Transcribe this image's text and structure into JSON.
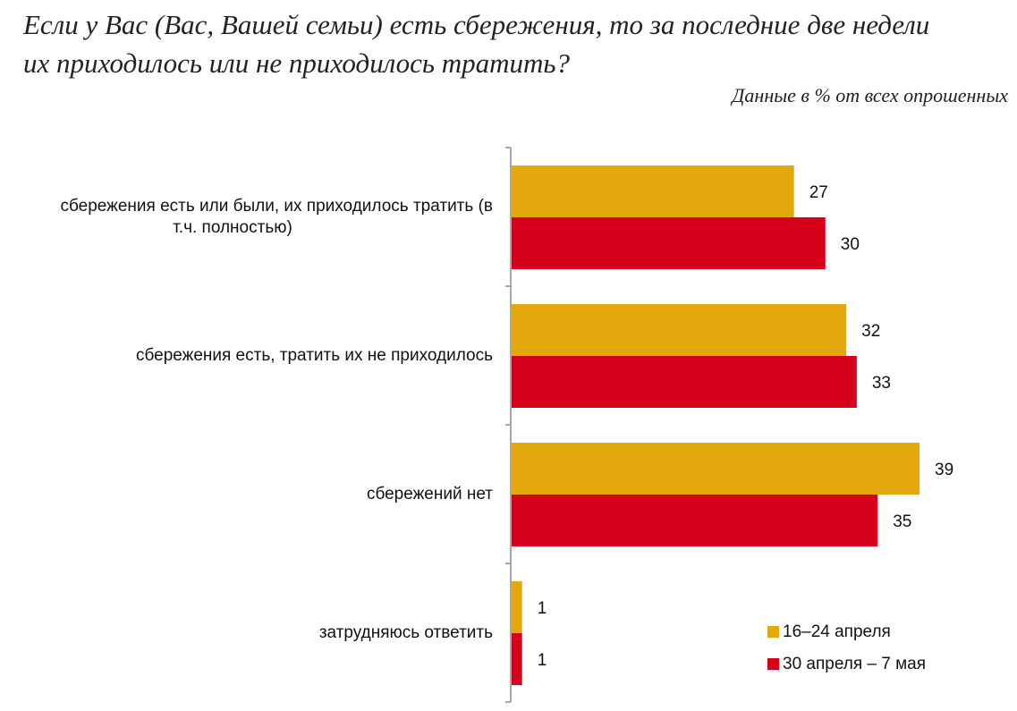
{
  "header": {
    "title_line1": "Если у Вас (Вас, Вашей семьи) есть сбережения, то за последние две недели",
    "title_line2": "их приходилось или не приходилось тратить?",
    "subtitle": "Данные в % от всех опрошенных"
  },
  "chart_data": {
    "type": "bar",
    "orientation": "horizontal",
    "title": "Если у Вас (Вас, Вашей семьи) есть сбережения, то за последние две недели их приходилось или не приходилось тратить?",
    "subtitle": "Данные в % от всех опрошенных",
    "categories": [
      [
        "сбережения есть или были, их приходилось тратить (в",
        "т.ч. полностью)"
      ],
      [
        "сбережения есть, тратить их не приходилось"
      ],
      [
        "сбережений нет"
      ],
      [
        "затрудняюсь ответить"
      ]
    ],
    "series": [
      {
        "name": "16–24 апреля",
        "values": [
          27,
          32,
          39,
          1
        ],
        "color": "#E3A90C"
      },
      {
        "name": "30 апреля – 7 мая",
        "values": [
          30,
          33,
          35,
          1
        ],
        "color": "#D7001B"
      }
    ],
    "xlim": [
      0,
      40
    ],
    "grid": false,
    "legend_position": "bottom-right",
    "axis_color": "#A6A6A6"
  }
}
